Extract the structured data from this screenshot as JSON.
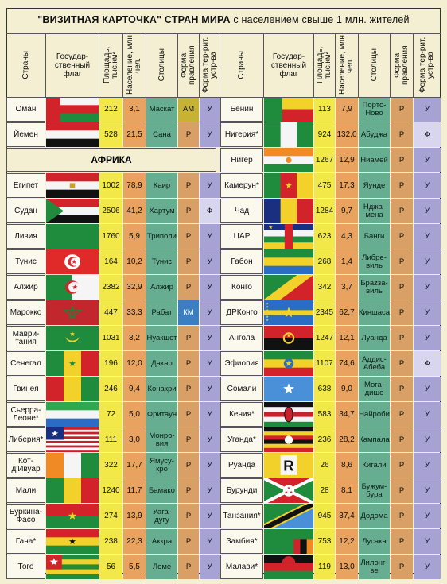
{
  "title": {
    "main": "\"ВИЗИТНАЯ КАРТОЧКА\" СТРАН МИРА",
    "rest": "с населением свыше 1 млн. жителей"
  },
  "headers": {
    "country": "Страны",
    "flag": "Государ-ственный флаг",
    "area": "Площадь, тыс.км²",
    "pop": "Население, млн чел.",
    "capital": "Столицы",
    "gov": "Форма правления",
    "terr": "Форма тер-рит. устр-ва"
  },
  "section_label": "АФРИКА",
  "colors": {
    "area": "#f3e84a",
    "population": "#e7a35f",
    "capital": "#67ad91",
    "government": "#d8a067",
    "territory": "#a6a2d3",
    "background": "#f4efd2"
  },
  "left": [
    {
      "name": "Оман",
      "flag": "oman",
      "area": "212",
      "pop": "3,1",
      "capital": "Маскат",
      "gov": "АМ",
      "terr": "У"
    },
    {
      "name": "Йемен",
      "flag": "yemen",
      "area": "528",
      "pop": "21,5",
      "capital": "Сана",
      "gov": "Р",
      "terr": "У"
    },
    {
      "section": true
    },
    {
      "name": "Египет",
      "flag": "egypt",
      "area": "1002",
      "pop": "78,9",
      "capital": "Каир",
      "gov": "Р",
      "terr": "У"
    },
    {
      "name": "Судан",
      "flag": "sudan",
      "area": "2506",
      "pop": "41,2",
      "capital": "Хартум",
      "gov": "Р",
      "terr": "Ф"
    },
    {
      "name": "Ливия",
      "flag": "libya",
      "area": "1760",
      "pop": "5,9",
      "capital": "Триполи",
      "gov": "Р",
      "terr": "У"
    },
    {
      "name": "Тунис",
      "flag": "tunisia",
      "area": "164",
      "pop": "10,2",
      "capital": "Тунис",
      "gov": "Р",
      "terr": "У"
    },
    {
      "name": "Алжир",
      "flag": "algeria",
      "area": "2382",
      "pop": "32,9",
      "capital": "Алжир",
      "gov": "Р",
      "terr": "У"
    },
    {
      "name": "Марокко",
      "flag": "morocco",
      "area": "447",
      "pop": "33,3",
      "capital": "Рабат",
      "gov": "КМ",
      "terr": "У"
    },
    {
      "name": "Маври-тания",
      "flag": "mauritania",
      "area": "1031",
      "pop": "3,2",
      "capital": "Нуакшот",
      "gov": "Р",
      "terr": "У"
    },
    {
      "name": "Сенегал",
      "flag": "senegal",
      "area": "196",
      "pop": "12,0",
      "capital": "Дакар",
      "gov": "Р",
      "terr": "У"
    },
    {
      "name": "Гвинея",
      "flag": "guinea",
      "area": "246",
      "pop": "9,4",
      "capital": "Конакри",
      "gov": "Р",
      "terr": "У"
    },
    {
      "name": "Сьерра-Леоне*",
      "flag": "sierraleone",
      "area": "72",
      "pop": "5,0",
      "capital": "Фритаун",
      "gov": "Р",
      "terr": "У"
    },
    {
      "name": "Либерия*",
      "flag": "liberia",
      "area": "111",
      "pop": "3,0",
      "capital": "Монро-вия",
      "gov": "Р",
      "terr": "У"
    },
    {
      "name": "Кот-д'Ивуар",
      "flag": "ivorycoast",
      "area": "322",
      "pop": "17,7",
      "capital": "Ямусу-кро",
      "gov": "Р",
      "terr": "У"
    },
    {
      "name": "Мали",
      "flag": "mali",
      "area": "1240",
      "pop": "11,7",
      "capital": "Бамако",
      "gov": "Р",
      "terr": "У"
    },
    {
      "name": "Буркина-Фасо",
      "flag": "burkina",
      "area": "274",
      "pop": "13,9",
      "capital": "Уага-дугу",
      "gov": "Р",
      "terr": "У"
    },
    {
      "name": "Гана*",
      "flag": "ghana",
      "area": "238",
      "pop": "22,3",
      "capital": "Аккра",
      "gov": "Р",
      "terr": "У"
    },
    {
      "name": "Того",
      "flag": "togo",
      "area": "56",
      "pop": "5,5",
      "capital": "Ломе",
      "gov": "Р",
      "terr": "У"
    }
  ],
  "right": [
    {
      "name": "Бенин",
      "flag": "benin",
      "area": "113",
      "pop": "7,9",
      "capital": "Порто-Ново",
      "gov": "Р",
      "terr": "У"
    },
    {
      "name": "Нигерия*",
      "flag": "nigeria",
      "area": "924",
      "pop": "132,0",
      "capital": "Абуджа",
      "gov": "Р",
      "terr": "Ф"
    },
    {
      "name": "Нигер",
      "flag": "niger",
      "area": "1267",
      "pop": "12,9",
      "capital": "Ниамей",
      "gov": "Р",
      "terr": "У"
    },
    {
      "name": "Камерун*",
      "flag": "cameroon",
      "area": "475",
      "pop": "17,3",
      "capital": "Яунде",
      "gov": "Р",
      "terr": "У"
    },
    {
      "name": "Чад",
      "flag": "chad",
      "area": "1284",
      "pop": "9,7",
      "capital": "Нджа-мена",
      "gov": "Р",
      "terr": "У"
    },
    {
      "name": "ЦАР",
      "flag": "car",
      "area": "623",
      "pop": "4,3",
      "capital": "Банги",
      "gov": "Р",
      "terr": "У"
    },
    {
      "name": "Габон",
      "flag": "gabon",
      "area": "268",
      "pop": "1,4",
      "capital": "Либре-виль",
      "gov": "Р",
      "terr": "У"
    },
    {
      "name": "Конго",
      "flag": "congo",
      "area": "342",
      "pop": "3,7",
      "capital": "Брazза-виль",
      "gov": "Р",
      "terr": "У"
    },
    {
      "name": "ДРКонго",
      "flag": "drc",
      "area": "2345",
      "pop": "62,7",
      "capital": "Киншаса",
      "gov": "Р",
      "terr": "У"
    },
    {
      "name": "Ангола",
      "flag": "angola",
      "area": "1247",
      "pop": "12,1",
      "capital": "Луанда",
      "gov": "Р",
      "terr": "У"
    },
    {
      "name": "Эфиопия",
      "flag": "ethiopia",
      "area": "1107",
      "pop": "74,6",
      "capital": "Аддис-Абеба",
      "gov": "Р",
      "terr": "Ф"
    },
    {
      "name": "Сомали",
      "flag": "somalia",
      "area": "638",
      "pop": "9,0",
      "capital": "Moга-дишо",
      "gov": "Р",
      "terr": "У"
    },
    {
      "name": "Кения*",
      "flag": "kenya",
      "area": "583",
      "pop": "34,7",
      "capital": "Найроби",
      "gov": "Р",
      "terr": "У"
    },
    {
      "name": "Уганда*",
      "flag": "uganda",
      "area": "236",
      "pop": "28,2",
      "capital": "Кампала",
      "gov": "Р",
      "terr": "У"
    },
    {
      "name": "Руанда",
      "flag": "rwanda",
      "area": "26",
      "pop": "8,6",
      "capital": "Кигали",
      "gov": "Р",
      "terr": "У"
    },
    {
      "name": "Бурунди",
      "flag": "burundi",
      "area": "28",
      "pop": "8,1",
      "capital": "Бужум-бура",
      "gov": "Р",
      "terr": "У"
    },
    {
      "name": "Танзания*",
      "flag": "tanzania",
      "area": "945",
      "pop": "37,4",
      "capital": "Додома",
      "gov": "Р",
      "terr": "У"
    },
    {
      "name": "Замбия*",
      "flag": "zambia",
      "area": "753",
      "pop": "12,2",
      "capital": "Лусака",
      "gov": "Р",
      "terr": "У"
    },
    {
      "name": "Малави*",
      "flag": "malawi",
      "area": "119",
      "pop": "13,0",
      "capital": "Лилонг-ве",
      "gov": "Р",
      "terr": "У"
    }
  ]
}
